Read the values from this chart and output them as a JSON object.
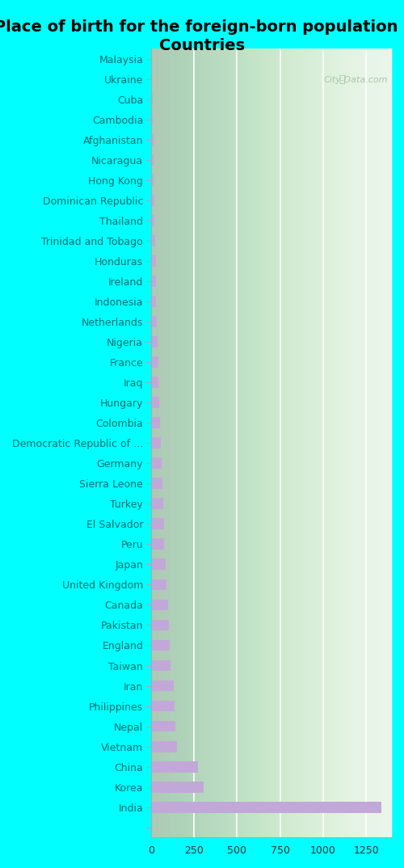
{
  "title": "Place of birth for the foreign-born population -\nCountries",
  "background_color": "#00FFFF",
  "plot_bg_color": "#e8f4e8",
  "bar_color": "#c2a8d8",
  "categories": [
    "",
    "India",
    "Korea",
    "China",
    "Vietnam",
    "Nepal",
    "Philippines",
    "Iran",
    "Taiwan",
    "England",
    "Pakistan",
    "Canada",
    "United Kingdom",
    "Japan",
    "Peru",
    "El Salvador",
    "Turkey",
    "Sierra Leone",
    "Germany",
    "Democratic Republic of ...",
    "Colombia",
    "Hungary",
    "Iraq",
    "France",
    "Nigeria",
    "Netherlands",
    "Indonesia",
    "Ireland",
    "Honduras",
    "Trinidad and Tobago",
    "Thailand",
    "Dominican Republic",
    "Hong Kong",
    "Nicaragua",
    "Afghanistan",
    "Cambodia",
    "Cuba",
    "Ukraine",
    "Malaysia"
  ],
  "values": [
    0,
    1340,
    305,
    275,
    150,
    140,
    138,
    130,
    115,
    108,
    102,
    98,
    92,
    83,
    78,
    75,
    70,
    65,
    62,
    57,
    52,
    48,
    44,
    42,
    37,
    34,
    31,
    29,
    27,
    24,
    21,
    19,
    17,
    15,
    13,
    11,
    9,
    7,
    5
  ],
  "xlim": [
    0,
    1400
  ],
  "xticks": [
    0,
    250,
    500,
    750,
    1000,
    1250
  ],
  "watermark": "City-Data.com",
  "title_fontsize": 14,
  "label_fontsize": 9,
  "tick_fontsize": 9
}
